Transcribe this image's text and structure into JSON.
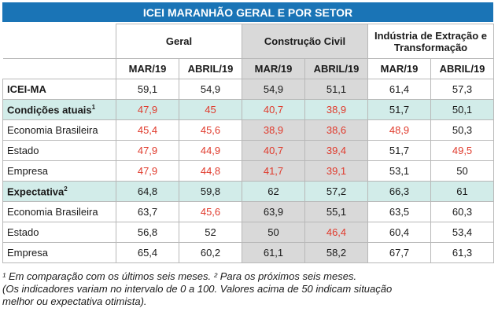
{
  "title": "ICEI MARANHÃO GERAL E POR SETOR",
  "groups": [
    "Geral",
    "Construção Civil",
    "Indústria de Extração e Transformação"
  ],
  "periods": [
    "MAR/19",
    "ABRIL/19",
    "MAR/19",
    "ABRIL/19",
    "MAR/19",
    "ABRIL/19"
  ],
  "rows": [
    {
      "label": "ICEI-MA",
      "bold": true,
      "highlight": false,
      "sup": "",
      "values": [
        "59,1",
        "54,9",
        "54,9",
        "51,1",
        "61,4",
        "57,3"
      ],
      "red": [
        false,
        false,
        false,
        false,
        false,
        false
      ]
    },
    {
      "label": "Condições atuais",
      "bold": true,
      "highlight": true,
      "sup": "1",
      "values": [
        "47,9",
        "45",
        "40,7",
        "38,9",
        "51,7",
        "50,1"
      ],
      "red": [
        true,
        true,
        true,
        true,
        false,
        false
      ]
    },
    {
      "label": "Economia Brasileira",
      "bold": false,
      "highlight": false,
      "sup": "",
      "values": [
        "45,4",
        "45,6",
        "38,9",
        "38,6",
        "48,9",
        "50,3"
      ],
      "red": [
        true,
        true,
        true,
        true,
        true,
        false
      ]
    },
    {
      "label": "Estado",
      "bold": false,
      "highlight": false,
      "sup": "",
      "values": [
        "47,9",
        "44,9",
        "40,7",
        "39,4",
        "51,7",
        "49,5"
      ],
      "red": [
        true,
        true,
        true,
        true,
        false,
        true
      ]
    },
    {
      "label": "Empresa",
      "bold": false,
      "highlight": false,
      "sup": "",
      "values": [
        "47,9",
        "44,8",
        "41,7",
        "39,1",
        "53,1",
        "50"
      ],
      "red": [
        true,
        true,
        true,
        true,
        false,
        false
      ]
    },
    {
      "label": "Expectativa",
      "bold": true,
      "highlight": true,
      "sup": "2",
      "values": [
        "64,8",
        "59,8",
        "62",
        "57,2",
        "66,3",
        "61"
      ],
      "red": [
        false,
        false,
        false,
        false,
        false,
        false
      ]
    },
    {
      "label": "Economia Brasileira",
      "bold": false,
      "highlight": false,
      "sup": "",
      "values": [
        "63,7",
        "45,6",
        "63,9",
        "55,1",
        "63,5",
        "60,3"
      ],
      "red": [
        false,
        true,
        false,
        false,
        false,
        false
      ]
    },
    {
      "label": "Estado",
      "bold": false,
      "highlight": false,
      "sup": "",
      "values": [
        "56,8",
        "52",
        "50",
        "46,4",
        "60,4",
        "53,4"
      ],
      "red": [
        false,
        false,
        false,
        true,
        false,
        false
      ]
    },
    {
      "label": "Empresa",
      "bold": false,
      "highlight": false,
      "sup": "",
      "values": [
        "65,4",
        "60,2",
        "61,1",
        "58,2",
        "67,7",
        "61,3"
      ],
      "red": [
        false,
        false,
        false,
        false,
        false,
        false
      ]
    }
  ],
  "notes": [
    "¹ Em comparação com os últimos seis meses. ² Para os próximos seis meses.",
    "(Os indicadores variam no intervalo de 0 a 100. Valores acima de 50 indicam situação",
    "melhor ou expectativa otimista)."
  ],
  "colors": {
    "title_bg": "#1a74b6",
    "highlight_row": "#d2ece9",
    "construcao_bg": "#d9d9d9",
    "negative_text": "#e03a2c"
  }
}
